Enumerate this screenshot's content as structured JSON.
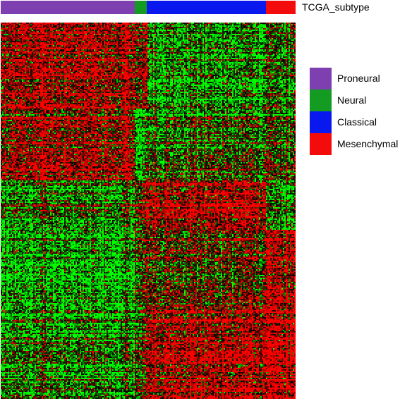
{
  "chart_data": {
    "type": "heatmap",
    "title": "",
    "xlabel": "",
    "ylabel": "",
    "annotation_track": {
      "label": "TCGA_subtype",
      "segments": [
        {
          "name": "Proneural",
          "fraction": 0.455
        },
        {
          "name": "Neural",
          "fraction": 0.041
        },
        {
          "name": "Classical",
          "fraction": 0.404
        },
        {
          "name": "Mesenchymal",
          "fraction": 0.1
        }
      ]
    },
    "legend": {
      "placement": "right",
      "entries": [
        {
          "name": "Proneural",
          "color": "#7e3fb0"
        },
        {
          "name": "Neural",
          "color": "#139b22"
        },
        {
          "name": "Classical",
          "color": "#0a18f0"
        },
        {
          "name": "Mesenchymal",
          "color": "#f40c0c"
        }
      ]
    },
    "color_scale": {
      "low": "#00ff00",
      "mid": "#000000",
      "high": "#ff0000"
    },
    "row_clusters": [
      {
        "fraction": 0.23,
        "pattern": [
          0.8,
          0.5,
          -0.6,
          -0.3
        ]
      },
      {
        "fraction": 0.19,
        "pattern": [
          0.7,
          -0.9,
          -0.2,
          -0.1
        ]
      },
      {
        "fraction": 0.13,
        "pattern": [
          -0.4,
          0.2,
          0.85,
          -0.6
        ]
      },
      {
        "fraction": 0.2,
        "pattern": [
          -0.7,
          0.0,
          0.2,
          0.8
        ]
      },
      {
        "fraction": 0.25,
        "pattern": [
          -0.6,
          -0.1,
          0.75,
          0.9
        ]
      }
    ]
  }
}
